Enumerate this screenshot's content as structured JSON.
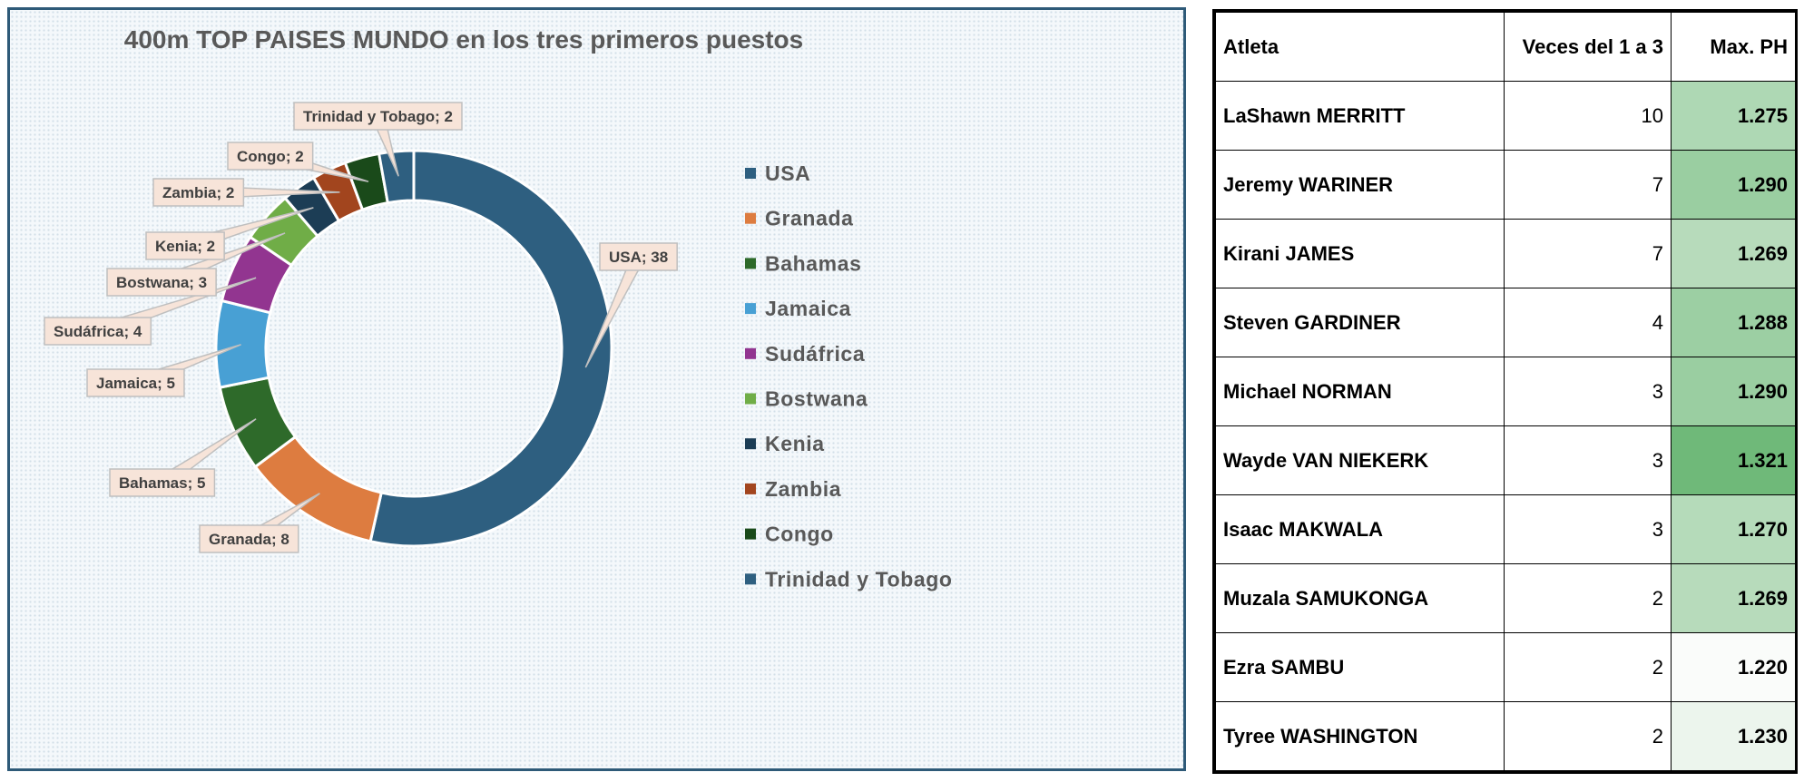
{
  "chart_data": {
    "type": "pie",
    "variant": "doughnut",
    "title": "400m TOP PAISES MUNDO en los tres primeros puestos",
    "categories": [
      "USA",
      "Granada",
      "Bahamas",
      "Jamaica",
      "Sudáfrica",
      "Bostwana",
      "Kenia",
      "Zambia",
      "Congo",
      "Trinidad y Tobago"
    ],
    "values": [
      38,
      8,
      5,
      5,
      4,
      3,
      2,
      2,
      2,
      2
    ],
    "colors": [
      "#2e5f80",
      "#dd7c40",
      "#2e6a2a",
      "#48a0d4",
      "#923590",
      "#70ad47",
      "#1c3d55",
      "#a2451e",
      "#1a4a1a",
      "#2e5f80"
    ],
    "data_labels": [
      "USA; 38",
      "Granada; 8",
      "Bahamas; 5",
      "Jamaica; 5",
      "Sudáfrica; 4",
      "Bostwana; 3",
      "Kenia; 2",
      "Zambia; 2",
      "Congo; 2",
      "Trinidad y Tobago; 2"
    ],
    "legend_position": "right"
  },
  "table": {
    "headers": [
      "Atleta",
      "Veces del 1 a 3",
      "Max. PH"
    ],
    "rows": [
      {
        "name": "LaShawn MERRITT",
        "veces": "10",
        "ph": "1.275",
        "ph_value": 1.275
      },
      {
        "name": "Jeremy WARINER",
        "veces": "7",
        "ph": "1.290",
        "ph_value": 1.29
      },
      {
        "name": "Kirani JAMES",
        "veces": "7",
        "ph": "1.269",
        "ph_value": 1.269
      },
      {
        "name": "Steven GARDINER",
        "veces": "4",
        "ph": "1.288",
        "ph_value": 1.288
      },
      {
        "name": "Michael NORMAN",
        "veces": "3",
        "ph": "1.290",
        "ph_value": 1.29
      },
      {
        "name": "Wayde VAN NIEKERK",
        "veces": "3",
        "ph": "1.321",
        "ph_value": 1.321
      },
      {
        "name": "Isaac MAKWALA",
        "veces": "3",
        "ph": "1.270",
        "ph_value": 1.27
      },
      {
        "name": "Muzala SAMUKONGA",
        "veces": "2",
        "ph": "1.269",
        "ph_value": 1.269
      },
      {
        "name": "Ezra SAMBU",
        "veces": "2",
        "ph": "1.220",
        "ph_value": 1.22
      },
      {
        "name": "Tyree WASHINGTON",
        "veces": "2",
        "ph": "1.230",
        "ph_value": 1.23
      }
    ],
    "ph_scale_colors": {
      "low": "#fafcfa",
      "high": "#6fb979"
    }
  }
}
